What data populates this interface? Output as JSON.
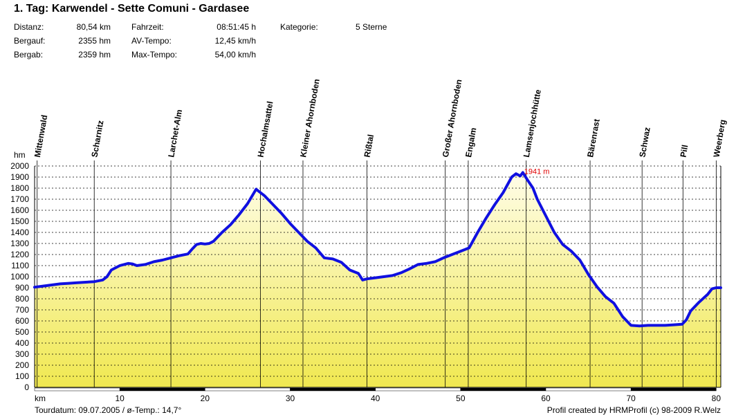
{
  "header": {
    "title": "1. Tag: Karwendel - Sette Comuni - Gardasee",
    "distanz_label": "Distanz:",
    "distanz_value": "80,54 km",
    "bergauf_label": "Bergauf:",
    "bergauf_value": "2355 hm",
    "bergab_label": "Bergab:",
    "bergab_value": "2359 hm",
    "fahrzeit_label": "Fahrzeit:",
    "fahrzeit_value": "08:51:45 h",
    "avtempo_label": "AV-Tempo:",
    "avtempo_value": "12,45 km/h",
    "maxtempo_label": "Max-Tempo:",
    "maxtempo_value": "54,00 km/h",
    "kategorie_label": "Kategorie:",
    "kategorie_value": "5 Sterne"
  },
  "footer": {
    "left": "Tourdatum: 09.07.2005  /  ø-Temp.: 14,7°",
    "right": "Profil created by HRMProfil (c) 98-2009 R.Welz"
  },
  "colors": {
    "line": "#1010e0",
    "fill_top": "#fffde8",
    "fill_bottom": "#f0e850",
    "peak_label": "#e00000"
  },
  "chart_data": {
    "type": "area",
    "ylabel": "hm",
    "xlabel": "km",
    "xlim": [
      0,
      80.54
    ],
    "ylim": [
      0,
      2000
    ],
    "x_ticks": [
      10,
      20,
      30,
      40,
      50,
      60,
      70,
      80
    ],
    "y_ticks": [
      0,
      100,
      200,
      300,
      400,
      500,
      600,
      700,
      800,
      900,
      1000,
      1100,
      1200,
      1300,
      1400,
      1500,
      1600,
      1700,
      1800,
      1900,
      2000
    ],
    "grid": true,
    "peak": {
      "x": 57.3,
      "y": 1941,
      "label": "1941 m"
    },
    "waypoints": [
      {
        "name": "Mittenwald",
        "x": 0.3
      },
      {
        "name": "Scharnitz",
        "x": 7.0
      },
      {
        "name": "Larchet-Alm",
        "x": 16.0
      },
      {
        "name": "Hochalmsattel",
        "x": 26.5
      },
      {
        "name": "Kleiner Ahornboden",
        "x": 31.5
      },
      {
        "name": "Rißtal",
        "x": 39.0
      },
      {
        "name": "Großer Ahornboden",
        "x": 48.2
      },
      {
        "name": "Engalm",
        "x": 50.9
      },
      {
        "name": "Lamsenjochhütte",
        "x": 57.7
      },
      {
        "name": "Bärenrast",
        "x": 65.2
      },
      {
        "name": "Schwaz",
        "x": 71.3
      },
      {
        "name": "Pill",
        "x": 76.1
      },
      {
        "name": "Weerberg",
        "x": 80.0
      }
    ],
    "series": [
      {
        "x": [
          0,
          1,
          2,
          3,
          4,
          5,
          6,
          7,
          8,
          8.5,
          9,
          10,
          10.5,
          11,
          11.5,
          12,
          13,
          14,
          15,
          16,
          17,
          18,
          18.5,
          19,
          19.5,
          20,
          20.5,
          21,
          22,
          23,
          24,
          25,
          26,
          27,
          28,
          29,
          30,
          31,
          32,
          33,
          34,
          35,
          36,
          37,
          38,
          38.5,
          39,
          40,
          41,
          42,
          43,
          44,
          45,
          46,
          47,
          48,
          49,
          50,
          51,
          52,
          53,
          54,
          55,
          56,
          56.5,
          57,
          57.3,
          57.8,
          58.5,
          59,
          60,
          61,
          62,
          63,
          64,
          65,
          66,
          67,
          68,
          69,
          70,
          71,
          72,
          73,
          74,
          75,
          76,
          76.5,
          77,
          78,
          79,
          79.5,
          80,
          80.54
        ],
        "y": [
          905,
          915,
          925,
          935,
          940,
          945,
          950,
          955,
          970,
          1000,
          1060,
          1100,
          1110,
          1120,
          1115,
          1100,
          1110,
          1135,
          1150,
          1170,
          1190,
          1205,
          1250,
          1290,
          1300,
          1295,
          1300,
          1320,
          1400,
          1470,
          1560,
          1660,
          1790,
          1730,
          1650,
          1570,
          1480,
          1400,
          1320,
          1260,
          1170,
          1160,
          1130,
          1060,
          1030,
          970,
          980,
          990,
          1000,
          1010,
          1035,
          1070,
          1110,
          1120,
          1135,
          1170,
          1200,
          1230,
          1260,
          1400,
          1530,
          1650,
          1760,
          1900,
          1930,
          1910,
          1941,
          1880,
          1800,
          1700,
          1550,
          1400,
          1290,
          1230,
          1150,
          1020,
          910,
          820,
          760,
          640,
          560,
          555,
          560,
          560,
          560,
          565,
          570,
          610,
          690,
          770,
          840,
          890,
          900,
          900
        ]
      }
    ]
  }
}
